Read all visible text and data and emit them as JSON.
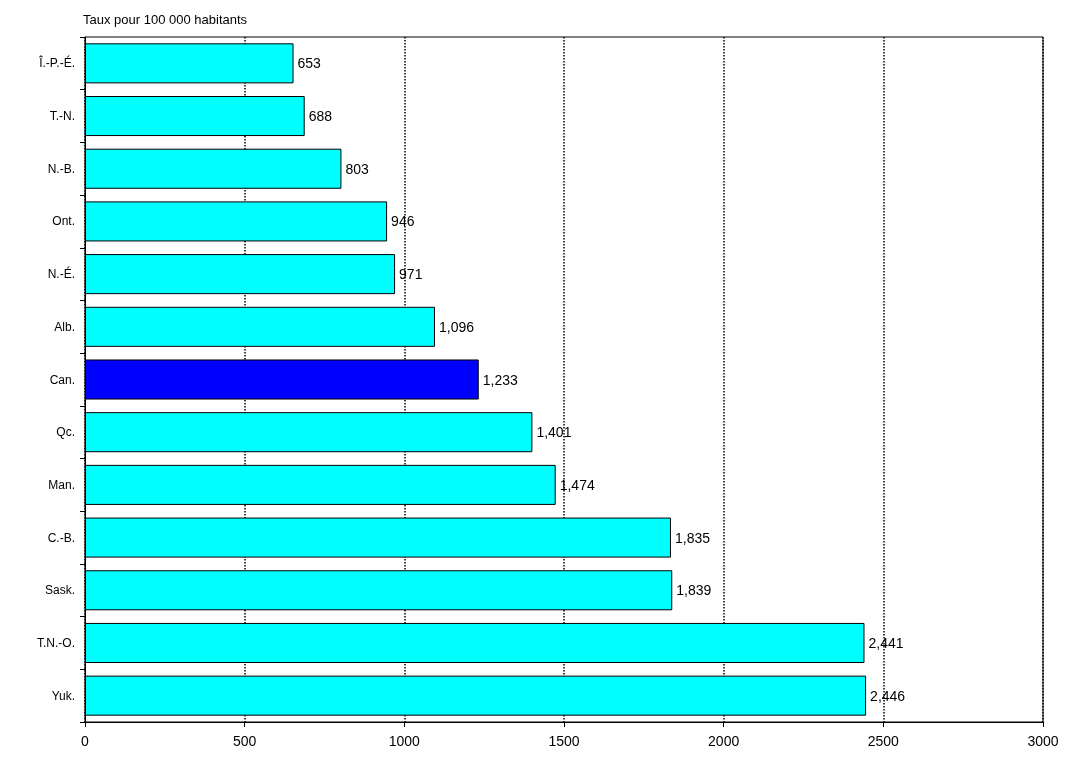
{
  "chart_data": {
    "type": "bar",
    "orientation": "horizontal",
    "title": "Taux pour 100 000 habitants",
    "categories": [
      "Î.-P.-É.",
      "T.-N.",
      "N.-B.",
      "Ont.",
      "N.-É.",
      "Alb.",
      "Can.",
      "Qc.",
      "Man.",
      "C.-B.",
      "Sask.",
      "T.N.-O.",
      "Yuk."
    ],
    "values": [
      653,
      688,
      803,
      946,
      971,
      1096,
      1233,
      1401,
      1474,
      1835,
      1839,
      2441,
      2446
    ],
    "colors": [
      "#00ffff",
      "#00ffff",
      "#00ffff",
      "#00ffff",
      "#00ffff",
      "#00ffff",
      "#0000ff",
      "#00ffff",
      "#00ffff",
      "#00ffff",
      "#00ffff",
      "#00ffff",
      "#00ffff"
    ],
    "value_labels": [
      "653",
      "688",
      "803",
      "946",
      "971",
      "1,096",
      "1,233",
      "1,401",
      "1,474",
      "1,835",
      "1,839",
      "2,441",
      "2,446"
    ],
    "xlim": [
      0,
      3000
    ],
    "xticks": [
      0,
      500,
      1000,
      1500,
      2000,
      2500,
      3000
    ],
    "grid": "x"
  }
}
